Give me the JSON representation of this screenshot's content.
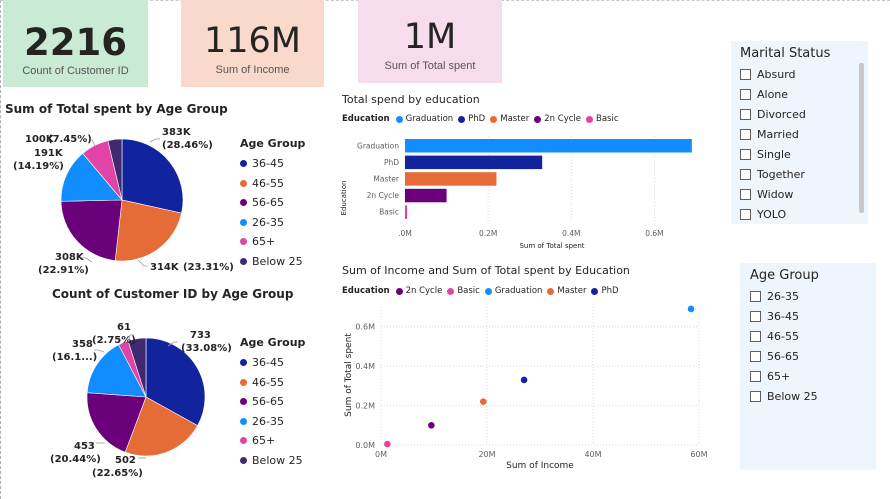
{
  "kpis": {
    "customers": {
      "value": "2216",
      "label": "Count of  Customer ID",
      "bg": "#c9ead3"
    },
    "income": {
      "value": "116M",
      "label": "Sum of Income",
      "bg": "#f9d9cb"
    },
    "spent": {
      "value": "1M",
      "label": "Sum of Total spent",
      "bg": "#f7dcee"
    }
  },
  "pie_spent": {
    "title": "Sum of Total spent by Age Group",
    "legend_title": "Age Group",
    "labels": [
      {
        "value": "383K",
        "pct": "(28.46%)"
      },
      {
        "value": "314K",
        "pct": "(23.31%)"
      },
      {
        "value": "308K",
        "pct": "(22.91%)"
      },
      {
        "value": "191K",
        "pct": "(14.19%)"
      },
      {
        "value": "100K",
        "pct": "(7.45%)"
      }
    ]
  },
  "pie_count": {
    "title": "Count of Customer ID by Age Group",
    "legend_title": "Age Group",
    "labels": [
      {
        "value": "733",
        "pct": "(33.08%)"
      },
      {
        "value": "502",
        "pct": "(22.65%)"
      },
      {
        "value": "453",
        "pct": "(20.44%)"
      },
      {
        "value": "358",
        "pct": "(16.1...)"
      },
      {
        "value": "61",
        "pct": "(2.75%)"
      }
    ]
  },
  "age_legend": [
    {
      "label": "36-45",
      "color": "#12239e"
    },
    {
      "label": "46-55",
      "color": "#e66c37"
    },
    {
      "label": "56-65",
      "color": "#6b007b"
    },
    {
      "label": "26-35",
      "color": "#118dff"
    },
    {
      "label": "65+",
      "color": "#e044a7"
    },
    {
      "label": "Below 25",
      "color": "#3f2a6f"
    }
  ],
  "bar_chart": {
    "title": "Total spend by education",
    "legend_title": "Education",
    "legend": [
      {
        "label": "Graduation",
        "color": "#118dff"
      },
      {
        "label": "PhD",
        "color": "#12239e"
      },
      {
        "label": "Master",
        "color": "#e66c37"
      },
      {
        "label": "2n Cycle",
        "color": "#6b007b"
      },
      {
        "label": "Basic",
        "color": "#e044a7"
      }
    ],
    "ylabel": "Education",
    "xlabel": "Sum of Total spent",
    "xticks": [
      ".0M",
      "0.2M",
      "0.4M",
      "0.6M"
    ]
  },
  "scatter_chart": {
    "title": "Sum of Income and Sum of Total spent by Education",
    "legend_title": "Education",
    "legend": [
      {
        "label": "2n Cycle",
        "color": "#6b007b"
      },
      {
        "label": "Basic",
        "color": "#e044a7"
      },
      {
        "label": "Graduation",
        "color": "#118dff"
      },
      {
        "label": "Master",
        "color": "#e66c37"
      },
      {
        "label": "PhD",
        "color": "#12239e"
      }
    ],
    "xlabel": "Sum of Income",
    "ylabel": "Sum of Total spent",
    "xticks": [
      "0M",
      "20M",
      "40M",
      "60M"
    ],
    "yticks": [
      "0.0M",
      "0.2M",
      "0.4M",
      "0.6M"
    ]
  },
  "chart_data": [
    {
      "type": "pie",
      "title": "Sum of Total spent by Age Group",
      "categories": [
        "36-45",
        "46-55",
        "56-65",
        "26-35",
        "65+",
        "Below 25"
      ],
      "values": [
        383,
        314,
        308,
        191,
        100,
        50
      ],
      "colors": [
        "#12239e",
        "#e66c37",
        "#6b007b",
        "#118dff",
        "#e044a7",
        "#3f2a6f"
      ]
    },
    {
      "type": "pie",
      "title": "Count of Customer ID by Age Group",
      "categories": [
        "36-45",
        "46-55",
        "56-65",
        "26-35",
        "65+",
        "Below 25"
      ],
      "values": [
        733,
        502,
        453,
        358,
        61,
        109
      ],
      "colors": [
        "#12239e",
        "#e66c37",
        "#6b007b",
        "#118dff",
        "#e044a7",
        "#3f2a6f"
      ]
    },
    {
      "type": "bar",
      "title": "Total spend by education",
      "categories": [
        "Graduation",
        "PhD",
        "Master",
        "2n Cycle",
        "Basic"
      ],
      "values": [
        0.69,
        0.33,
        0.22,
        0.1,
        0.005
      ],
      "colors": [
        "#118dff",
        "#12239e",
        "#e66c37",
        "#6b007b",
        "#e044a7"
      ],
      "xlabel": "Sum of Total spent",
      "ylabel": "Education",
      "xlim": [
        0,
        0.7
      ]
    },
    {
      "type": "scatter",
      "title": "Sum of Income and Sum of Total spent by Education",
      "points": [
        {
          "category": "2n Cycle",
          "x": 9.5,
          "y": 0.1,
          "color": "#6b007b"
        },
        {
          "category": "Basic",
          "x": 1.2,
          "y": 0.005,
          "color": "#e044a7"
        },
        {
          "category": "Graduation",
          "x": 58.5,
          "y": 0.69,
          "color": "#118dff"
        },
        {
          "category": "Master",
          "x": 19.3,
          "y": 0.22,
          "color": "#e66c37"
        },
        {
          "category": "PhD",
          "x": 27.0,
          "y": 0.33,
          "color": "#12239e"
        }
      ],
      "xlabel": "Sum of Income",
      "ylabel": "Sum of Total spent",
      "xlim": [
        0,
        60
      ],
      "ylim": [
        0,
        0.7
      ]
    }
  ],
  "slicer_marital": {
    "title": "Marital Status",
    "items": [
      "Absurd",
      "Alone",
      "Divorced",
      "Married",
      "Single",
      "Together",
      "Widow",
      "YOLO"
    ]
  },
  "slicer_age": {
    "title": "Age Group",
    "items": [
      "26-35",
      "36-45",
      "46-55",
      "56-65",
      "65+",
      "Below 25"
    ]
  }
}
